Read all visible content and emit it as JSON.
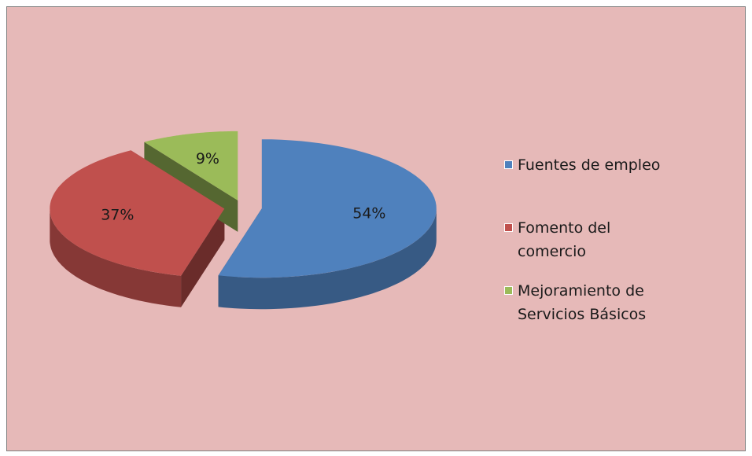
{
  "chart_data": {
    "type": "pie",
    "categories": [
      "Fuentes de empleo",
      "Fomento del comercio",
      "Mejoramiento de Servicios Básicos"
    ],
    "values": [
      54,
      37,
      9
    ],
    "value_labels": [
      "54%",
      "37%",
      "9%"
    ],
    "colors": [
      "#4f81bd",
      "#c0504d",
      "#9bbb59"
    ],
    "legend": "right"
  }
}
